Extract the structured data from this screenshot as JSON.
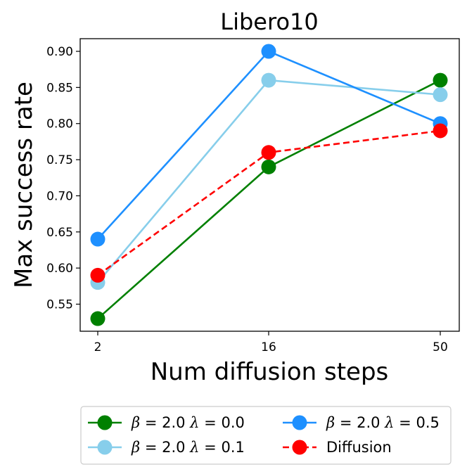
{
  "chart_data": {
    "type": "line",
    "title": "Libero10",
    "xlabel": "Num diffusion steps",
    "ylabel": "Max success rate",
    "categories": [
      "2",
      "16",
      "50"
    ],
    "yticks": [
      "0.55",
      "0.60",
      "0.65",
      "0.70",
      "0.75",
      "0.80",
      "0.85",
      "0.90"
    ],
    "ylim": [
      0.51,
      0.915
    ],
    "grid": false,
    "legend_position": "bottom, below plot, 2 columns",
    "series": [
      {
        "name": "β = 2.0 λ = 0.0",
        "beta": "2.0",
        "lambda": "0.0",
        "color": "#008000",
        "dash": "solid",
        "values": [
          0.53,
          0.74,
          0.86
        ]
      },
      {
        "name": "β = 2.0 λ = 0.1",
        "beta": "2.0",
        "lambda": "0.1",
        "color": "#87CEEB",
        "dash": "solid",
        "values": [
          0.58,
          0.86,
          0.84
        ]
      },
      {
        "name": "β = 2.0 λ = 0.5",
        "beta": "2.0",
        "lambda": "0.5",
        "color": "#1E90FF",
        "dash": "solid",
        "values": [
          0.64,
          0.9,
          0.8
        ]
      },
      {
        "name": "Diffusion",
        "color": "#FF0000",
        "dash": "dashed",
        "values": [
          0.59,
          0.76,
          0.79
        ]
      }
    ]
  }
}
